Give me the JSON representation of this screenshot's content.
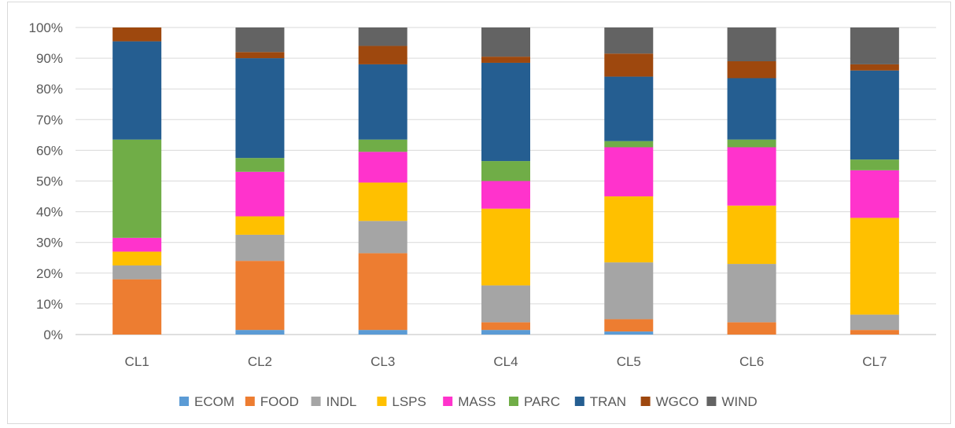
{
  "chart_data": {
    "type": "bar",
    "stacked": "percent",
    "categories": [
      "CL1",
      "CL2",
      "CL3",
      "CL4",
      "CL5",
      "CL6",
      "CL7"
    ],
    "y_ticks": [
      "0%",
      "10%",
      "20%",
      "30%",
      "40%",
      "50%",
      "60%",
      "70%",
      "80%",
      "90%",
      "100%"
    ],
    "ylim": [
      0,
      100
    ],
    "grid": "horizontal",
    "legend_position": "bottom",
    "series": [
      {
        "name": "ECOM",
        "color": "#5b9bd5",
        "values": [
          0,
          1.5,
          1.5,
          1.5,
          1,
          0,
          0
        ]
      },
      {
        "name": "FOOD",
        "color": "#ed7d31",
        "values": [
          18,
          22.5,
          25,
          2.5,
          4,
          4,
          1.5
        ]
      },
      {
        "name": "INDL",
        "color": "#a5a5a5",
        "values": [
          4.5,
          8.5,
          10.5,
          12,
          18.5,
          19,
          5
        ]
      },
      {
        "name": "LSPS",
        "color": "#ffc000",
        "values": [
          4.5,
          6,
          12.5,
          25,
          21.5,
          19,
          31.5
        ]
      },
      {
        "name": "MASS",
        "color": "#ff33cc",
        "values": [
          4.5,
          14.5,
          10,
          9,
          16,
          19,
          15.5
        ]
      },
      {
        "name": "PARC",
        "color": "#70ad47",
        "values": [
          32,
          4.5,
          4,
          6.5,
          2,
          2.5,
          3.5
        ]
      },
      {
        "name": "TRAN",
        "color": "#255e91",
        "values": [
          32,
          32.5,
          24.5,
          32,
          21,
          20,
          29
        ]
      },
      {
        "name": "WGCO",
        "color": "#9e480e",
        "values": [
          4.5,
          2,
          6,
          2,
          7.5,
          5.5,
          2
        ]
      },
      {
        "name": "WIND",
        "color": "#636363",
        "values": [
          0,
          8,
          6,
          9.5,
          8.5,
          11,
          12
        ]
      }
    ]
  }
}
